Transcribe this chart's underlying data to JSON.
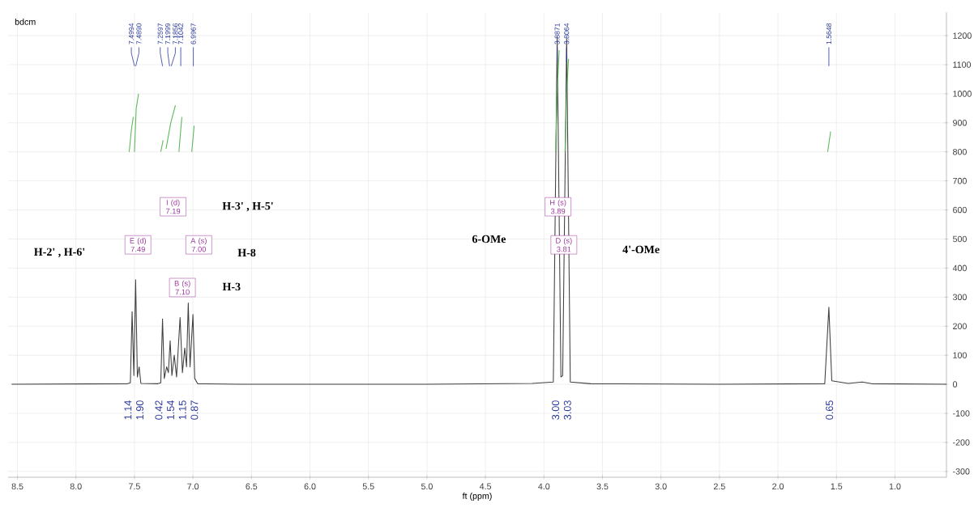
{
  "chart_data": {
    "type": "line",
    "title": "bdcm",
    "xlabel": "ft (ppm)",
    "xlim": [
      8.58,
      0.56
    ],
    "ylim": [
      -320,
      1280
    ],
    "xticks": [
      8.5,
      {
        "value": 8,
        "label": "8.0"
      },
      7.5,
      {
        "value": 7,
        "label": "7.0"
      },
      6.5,
      {
        "value": 6,
        "label": "6.0"
      },
      5.5,
      {
        "value": 5,
        "label": "5.0"
      },
      4.5,
      {
        "value": 4,
        "label": "4.0"
      },
      3.5,
      {
        "value": 3,
        "label": "3.0"
      },
      2.5,
      {
        "value": 2,
        "label": "2.0"
      },
      1.5,
      {
        "value": 1,
        "label": "1.0"
      }
    ],
    "yticks": [
      -300,
      -200,
      -100,
      0,
      100,
      200,
      300,
      400,
      500,
      600,
      700,
      800,
      900,
      1000,
      1100,
      1200
    ],
    "grid": true,
    "series": [
      {
        "color": "#404040",
        "x": [
          8.55,
          7.56,
          7.535,
          7.52,
          7.505,
          7.49,
          7.475,
          7.46,
          7.445,
          7.3,
          7.275,
          7.26,
          7.245,
          7.225,
          7.21,
          7.195,
          7.18,
          7.16,
          7.14,
          7.11,
          7.09,
          7.07,
          7.055,
          7.04,
          7.025,
          7.0,
          6.985,
          6.96,
          6.6,
          5.0,
          4.1,
          3.92,
          3.887,
          3.855,
          3.84,
          3.806,
          3.775,
          3.6,
          2.5,
          1.6,
          1.565,
          1.54,
          1.4,
          1.28,
          1.2,
          0.56
        ],
        "values": [
          0,
          2,
          5,
          250,
          30,
          360,
          25,
          60,
          3,
          2,
          5,
          225,
          20,
          60,
          40,
          150,
          30,
          100,
          25,
          230,
          40,
          125,
          60,
          280,
          60,
          240,
          20,
          2,
          0,
          0,
          3,
          8,
          1195,
          25,
          30,
          1190,
          8,
          2,
          0,
          2,
          265,
          12,
          3,
          8,
          2,
          0
        ]
      },
      {
        "color": "#5cb85c",
        "x": [
          7.545,
          7.525,
          7.51
        ],
        "values": [
          800,
          880,
          920
        ]
      },
      {
        "color": "#5cb85c",
        "x": [
          7.5,
          7.485,
          7.465
        ],
        "values": [
          800,
          950,
          1000
        ]
      },
      {
        "color": "#5cb85c",
        "x": [
          7.275,
          7.255
        ],
        "values": [
          800,
          840
        ]
      },
      {
        "color": "#5cb85c",
        "x": [
          7.23,
          7.19,
          7.15
        ],
        "values": [
          810,
          900,
          960
        ]
      },
      {
        "color": "#5cb85c",
        "x": [
          7.12,
          7.095
        ],
        "values": [
          800,
          920
        ]
      },
      {
        "color": "#5cb85c",
        "x": [
          7.01,
          6.99
        ],
        "values": [
          800,
          890
        ]
      },
      {
        "color": "#5cb85c",
        "x": [
          3.9,
          3.887,
          3.87
        ],
        "values": [
          800,
          1000,
          1150
        ]
      },
      {
        "color": "#5cb85c",
        "x": [
          3.82,
          3.806,
          3.79
        ],
        "values": [
          800,
          1000,
          1120
        ]
      },
      {
        "color": "#5cb85c",
        "x": [
          1.575,
          1.55
        ],
        "values": [
          800,
          870
        ]
      }
    ],
    "annotations": [
      "7.4994",
      "7.4890",
      "7.2597",
      "7.1999",
      "7.1856",
      "7.1042",
      "6.9967",
      {
        "text": "3.8871",
        "x": 3.8871,
        "y": 1110
      },
      {
        "text": "3.8064",
        "x": 3.8064,
        "y": 1110
      },
      "1.5648",
      "1.14",
      "1.90",
      "0.42",
      "1.54",
      "1.15",
      "0.87",
      "3.00",
      "3.03",
      "0.65",
      "I (d) 7.19",
      "E (d) 7.49",
      "A (s) 7.00",
      "B (s) 7.10",
      "H (s) 3.89",
      "D (s) 3.81",
      "H-2' , H-6'",
      "H-3' , H-5'",
      "H-8",
      "H-3",
      "6-OMe",
      "4'-OMe"
    ]
  }
}
